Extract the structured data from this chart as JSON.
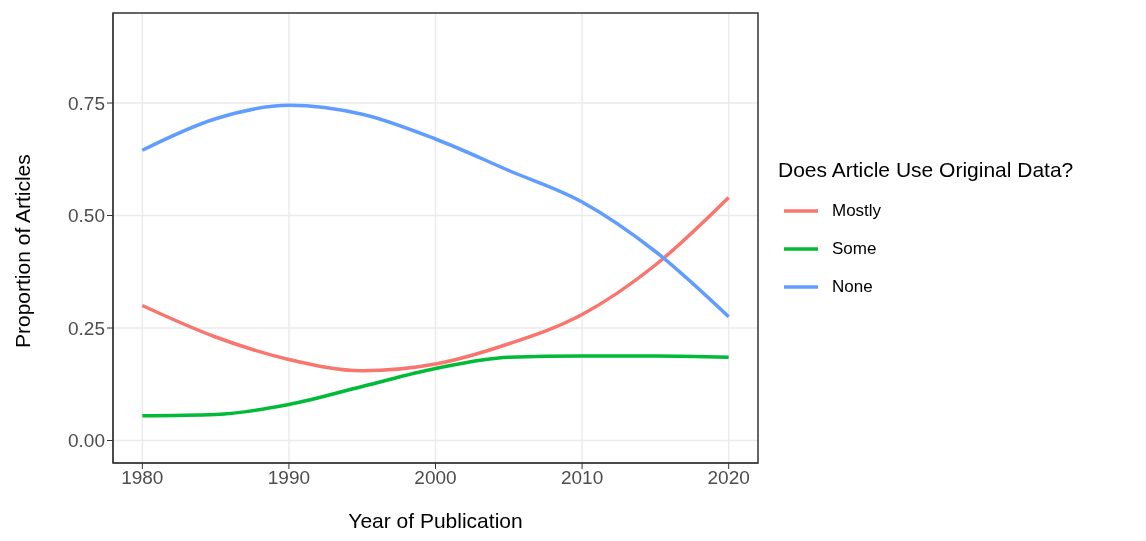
{
  "chart_data": {
    "type": "line",
    "xlabel": "Year of Publication",
    "ylabel": "Proportion of Articles",
    "legend_title": "Does Article Use Original Data?",
    "x": [
      1980,
      1985,
      1990,
      1995,
      2000,
      2005,
      2010,
      2015,
      2020
    ],
    "series": [
      {
        "name": "Mostly",
        "color": "#f8766d",
        "values": [
          0.3,
          0.23,
          0.18,
          0.155,
          0.17,
          0.215,
          0.28,
          0.39,
          0.54
        ]
      },
      {
        "name": "Some",
        "color": "#00ba38",
        "values": [
          0.055,
          0.058,
          0.08,
          0.12,
          0.16,
          0.185,
          0.188,
          0.188,
          0.185
        ]
      },
      {
        "name": "None",
        "color": "#619cff",
        "values": [
          0.645,
          0.715,
          0.745,
          0.725,
          0.67,
          0.6,
          0.53,
          0.42,
          0.275
        ]
      }
    ],
    "xlim": [
      1978,
      2022
    ],
    "xticks": [
      1980,
      1990,
      2000,
      2010,
      2020
    ],
    "ylim": [
      -0.05,
      0.95
    ],
    "yticks": [
      {
        "value": 0,
        "label": "0.00"
      },
      {
        "value": 0.25,
        "label": "0.25"
      },
      {
        "value": 0.5,
        "label": "0.50"
      },
      {
        "value": 0.75,
        "label": "0.75"
      }
    ],
    "grid": true,
    "legend": "right",
    "marker": "none",
    "line_style": "solid"
  }
}
